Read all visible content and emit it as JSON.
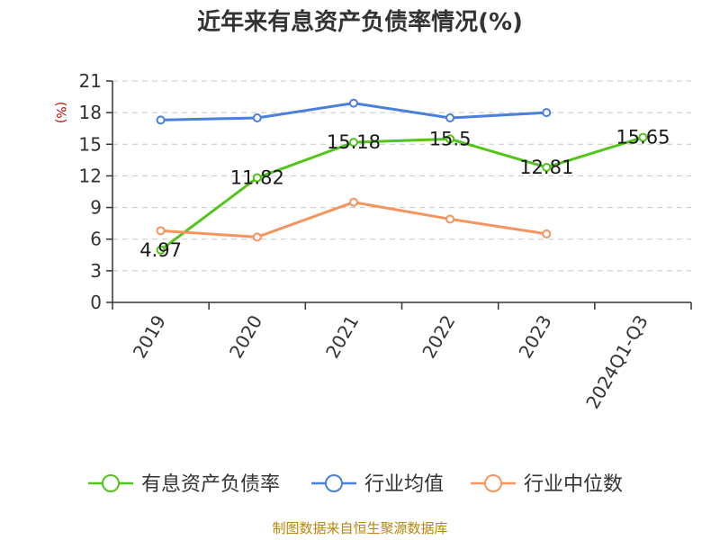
{
  "chart_data": {
    "type": "line",
    "title": "近年来有息资产负债率情况(%)",
    "ylabel": "(%)",
    "xlabel": "",
    "categories": [
      "2019",
      "2020",
      "2021",
      "2022",
      "2023",
      "2024Q1-Q3"
    ],
    "ylim": [
      0,
      21
    ],
    "yticks": [
      0,
      3,
      6,
      9,
      12,
      15,
      18,
      21
    ],
    "grid": true,
    "legend_position": "bottom",
    "series": [
      {
        "name": "有息资产负债率",
        "color": "#52c41a",
        "values": [
          4.97,
          11.82,
          15.18,
          15.5,
          12.81,
          15.65
        ],
        "show_labels": true
      },
      {
        "name": "行业均值",
        "color": "#4a7fdc",
        "values": [
          17.3,
          17.5,
          18.9,
          17.5,
          18.0,
          null
        ],
        "show_labels": false
      },
      {
        "name": "行业中位数",
        "color": "#f5945c",
        "values": [
          6.8,
          6.2,
          9.5,
          7.9,
          6.5,
          null
        ],
        "show_labels": false
      }
    ],
    "source": "制图数据来自恒生聚源数据库"
  }
}
